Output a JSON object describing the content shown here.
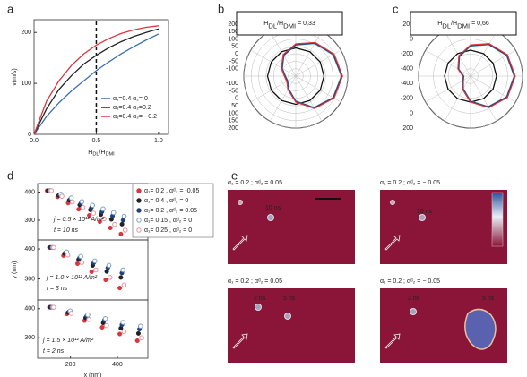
{
  "chart_data": [
    {
      "type": "line",
      "label": "a",
      "ylabel": "v(m/s)",
      "xlabel": [
        "H",
        "DL",
        "/H",
        "DMI"
      ],
      "x": [
        0,
        0.1,
        0.2,
        0.3,
        0.4,
        0.5,
        0.6,
        0.7,
        0.8,
        0.9,
        1.0
      ],
      "xlim": [
        0,
        1.08
      ],
      "ylim": [
        0,
        225
      ],
      "xticks": [
        {
          "value": 0,
          "label": "0.0"
        },
        {
          "value": 0.5,
          "label": "0.5"
        },
        {
          "value": 1,
          "label": "1.0"
        }
      ],
      "yticks": [
        0,
        100,
        200
      ],
      "vline": 0.5,
      "legend": "lower right",
      "series": [
        {
          "name": "α₁=0.4  α₂= 0",
          "color": "#3d6fae",
          "values": [
            0,
            35,
            62,
            85,
            105,
            125,
            142,
            158,
            172,
            185,
            197
          ]
        },
        {
          "name": "α₁=0.4  α₂=0.2",
          "color": "#222222",
          "values": [
            0,
            50,
            88,
            115,
            138,
            155,
            170,
            182,
            192,
            200,
            207
          ]
        },
        {
          "name": "α₁=0.4  α₂= - 0.2",
          "color": "#d9363e",
          "values": [
            0,
            65,
            105,
            135,
            158,
            175,
            188,
            198,
            205,
            210,
            213
          ]
        }
      ]
    },
    {
      "type": "polar",
      "label": "b",
      "title": [
        "H",
        "DL",
        "/H",
        "DMI",
        " = 0,33"
      ],
      "theta": [
        0,
        30,
        60,
        90,
        120,
        150,
        180,
        210,
        240,
        270,
        300,
        330
      ],
      "rlim": [
        -150,
        200
      ],
      "rticks": [
        -100,
        -50,
        0,
        50,
        100,
        150,
        200
      ],
      "series": [
        {
          "color": "#111111",
          "values": [
            40,
            40,
            40,
            40,
            40,
            40,
            40,
            40,
            40,
            40,
            40,
            40
          ]
        },
        {
          "color": "#3d8fc4",
          "values": [
            59,
            104,
            139,
            157,
            139,
            94,
            17,
            -53,
            -88,
            -81,
            -46,
            10
          ]
        },
        {
          "color": "#1f2f5a",
          "values": [
            63,
            108,
            143,
            161,
            143,
            98,
            21,
            -49,
            -84,
            -77,
            -42,
            14
          ]
        },
        {
          "color": "#d9363e",
          "values": [
            67,
            112,
            147,
            165,
            147,
            102,
            25,
            -45,
            -80,
            -73,
            -38,
            18
          ]
        }
      ]
    },
    {
      "type": "polar",
      "label": "c",
      "title": [
        "H",
        "DL",
        "/H",
        "DMI",
        " = 0,66"
      ],
      "theta": [
        0,
        30,
        60,
        90,
        120,
        150,
        180,
        210,
        240,
        270,
        300,
        330
      ],
      "rlim": [
        -500,
        200
      ],
      "rticks": [
        -400,
        -200,
        0,
        200
      ],
      "series": [
        {
          "color": "#111111",
          "values": [
            -150,
            -150,
            -150,
            -150,
            -150,
            -150,
            -150,
            -150,
            -150,
            -150,
            -150,
            -150
          ]
        },
        {
          "color": "#3d8fc4",
          "values": [
            -95,
            -11,
            59,
            87,
            59,
            -25,
            -165,
            -305,
            -389,
            -410,
            -319,
            -200
          ]
        },
        {
          "color": "#1f2f5a",
          "values": [
            -88,
            -4,
            66,
            94,
            66,
            -18,
            -158,
            -298,
            -382,
            -403,
            -312,
            -193
          ]
        },
        {
          "color": "#d9363e",
          "values": [
            -80,
            4,
            74,
            102,
            74,
            -10,
            -150,
            -290,
            -374,
            -395,
            -304,
            -185
          ]
        }
      ]
    },
    {
      "type": "scatter",
      "label": "d",
      "legend": "upper right",
      "annotations": [
        "j = 0.5 × 10¹² A/m²",
        "t = 10 ns"
      ],
      "x": [
        100,
        145,
        190,
        235,
        280,
        325,
        370,
        415
      ],
      "xlim": [
        60,
        530
      ],
      "ylim": [
        230,
        430
      ],
      "yticks": [
        300,
        400
      ],
      "series": [
        {
          "name": "α₁= 0.2 ,  αᵈ₂ = -0.05",
          "color": "#d9363e",
          "filled": true,
          "values": [
            405,
            383,
            361,
            339,
            317,
            295,
            273,
            251
          ]
        },
        {
          "name": "α₁= 0.4 ,  αᵈ₂ = 0",
          "color": "#222222",
          "filled": true,
          "values": [
            405,
            388,
            371,
            354,
            337,
            320,
            303,
            286
          ]
        },
        {
          "name": "α₁= 0.2 ,  αᵈ₂ = 0.05",
          "color": "#1f3f7a",
          "filled": true,
          "values": [
            405,
            390,
            375,
            360,
            345,
            330,
            315,
            300
          ]
        },
        {
          "name": "α₁= 0.15 ,  αᵈ₂ = 0",
          "color": "#7a9fc0",
          "filled": false,
          "values": [
            405,
            392,
            379,
            366,
            353,
            340,
            327,
            314
          ]
        },
        {
          "name": "α₁= 0.25 ,  αᵈ₂ = 0",
          "color": "#e0959c",
          "filled": false,
          "values": [
            405,
            385,
            365,
            345,
            325,
            305,
            285,
            265
          ]
        }
      ]
    },
    {
      "type": "scatter",
      "ylabel": "y (nm)",
      "annotations": [
        "j = 1.0 × 10¹² A/m²",
        "t = 3 ns"
      ],
      "x": [
        110,
        170,
        230,
        290,
        350,
        410
      ],
      "xlim": [
        60,
        530
      ],
      "ylim": [
        230,
        430
      ],
      "yticks": [
        300,
        400
      ],
      "series": [
        {
          "color": "#d9363e",
          "filled": true,
          "values": [
            405,
            378,
            351,
            324,
            297,
            270
          ]
        },
        {
          "color": "#222222",
          "filled": true,
          "values": [
            405,
            385,
            365,
            345,
            325,
            305
          ]
        },
        {
          "color": "#1f3f7a",
          "filled": true,
          "values": [
            405,
            388,
            371,
            354,
            337,
            320
          ]
        },
        {
          "color": "#7a9fc0",
          "filled": false,
          "values": [
            405,
            390,
            375,
            360,
            345,
            330
          ]
        },
        {
          "color": "#e0959c",
          "filled": false,
          "values": [
            405,
            380,
            355,
            330,
            305,
            280
          ]
        }
      ]
    },
    {
      "type": "scatter",
      "xlabel": "x (nm)",
      "annotations": [
        "j = 1.5 × 10¹² A/m²",
        "t = 2 ns"
      ],
      "x": [
        110,
        185,
        260,
        335,
        410,
        485
      ],
      "xlim": [
        60,
        530
      ],
      "ylim": [
        230,
        430
      ],
      "yticks": [
        300,
        400
      ],
      "xticks": [
        200,
        400
      ],
      "series": [
        {
          "color": "#d9363e",
          "filled": true,
          "values": [
            405,
            382,
            359,
            336,
            313,
            290
          ]
        },
        {
          "color": "#222222",
          "filled": true,
          "values": [
            405,
            387,
            369,
            351,
            333,
            315
          ]
        },
        {
          "color": "#1f3f7a",
          "filled": true,
          "values": [
            405,
            390,
            375,
            360,
            345,
            330
          ]
        },
        {
          "color": "#7a9fc0",
          "filled": false,
          "values": [
            405,
            392,
            379,
            366,
            353,
            340
          ]
        },
        {
          "color": "#e0959c",
          "filled": false,
          "values": [
            405,
            384,
            363,
            342,
            321,
            300
          ]
        }
      ]
    }
  ],
  "panel_e": {
    "label": "e",
    "images": [
      {
        "caption": "α₁ = 0.2 ; αᵈ₂ = 0.05",
        "labels": [
          "10 ns"
        ]
      },
      {
        "caption": "α₁ = 0.2 ; αᵈ₂ = − 0.05",
        "labels": [
          "10 ns"
        ]
      },
      {
        "caption": "α₁ = 0.2 ; αᵈ₂ = 0.05",
        "labels": [
          "2 ns",
          "5 ns"
        ]
      },
      {
        "caption": "α₁ = 0.2 ; αᵈ₂ = − 0.05",
        "labels": [
          "2 ns",
          "5 ns"
        ]
      }
    ]
  }
}
